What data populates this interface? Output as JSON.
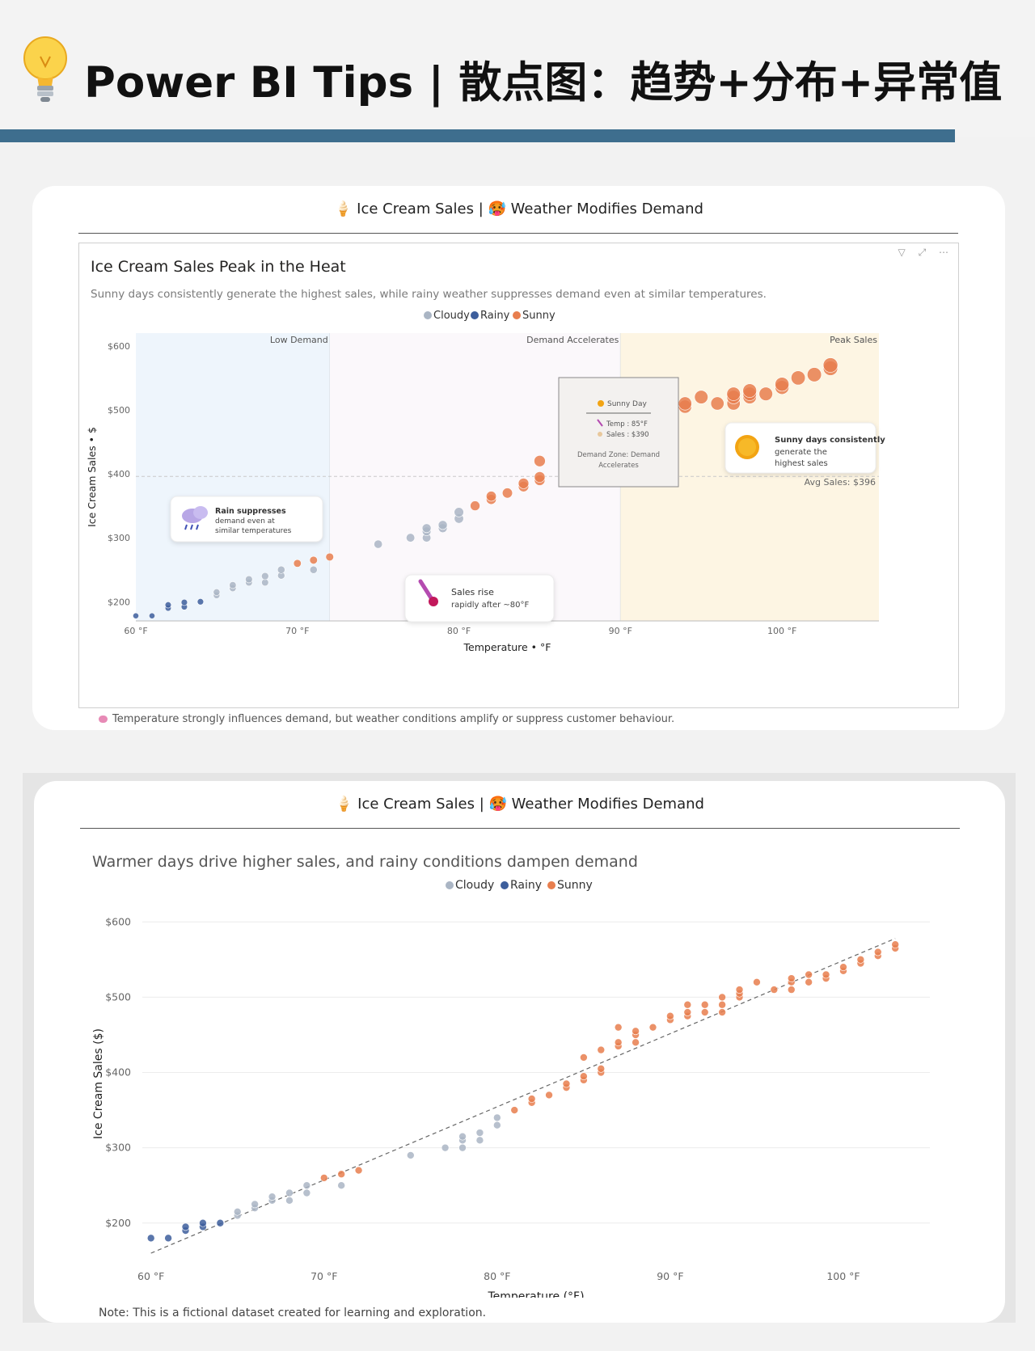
{
  "header": {
    "title": "Power BI Tips | 散点图：趋势+分布+异常值",
    "bulb_icon": "lightbulb-icon"
  },
  "card_title": "🍦 Ice Cream Sales | 🥵 Weather Modifies Demand",
  "colors": {
    "Cloudy": "#aab5c4",
    "Rainy": "#3d5e9c",
    "Sunny": "#e87e4e",
    "accent_bar": "#3e6e8e"
  },
  "visual1": {
    "title": "Ice Cream Sales Peak in the Heat",
    "subtitle": "Sunny days consistently generate the highest sales, while rainy weather suppresses demand even at similar temperatures.",
    "header_icons": "▽ ⤢ ⋯",
    "zone_labels": [
      "Low Demand",
      "Demand Accelerates",
      "Peak Sales"
    ],
    "avg_label": "Avg Sales: $396",
    "tooltip": {
      "title": "Sunny Day",
      "temp": "Temp : 85°F",
      "sales": "Sales : $390",
      "zone": "Demand Zone: Demand Accelerates"
    },
    "callout_rain": [
      "Rain suppresses",
      "demand even at",
      "similar temperatures"
    ],
    "callout_rise": [
      "Sales rise",
      "rapidly after ~80°F"
    ],
    "callout_sun": [
      "Sunny days consistently",
      "generate the",
      "highest sales"
    ],
    "footnote": "Temperature strongly influences demand, but weather conditions amplify or suppress customer behaviour."
  },
  "visual2": {
    "subtitle": "Warmer days drive higher sales, and rainy conditions dampen demand",
    "footnote": "Note: This is a fictional dataset created for learning and exploration."
  },
  "chart_data": [
    {
      "type": "scatter",
      "title": "Ice Cream Sales Peak in the Heat",
      "xlabel": "Temperature • °F",
      "ylabel": "Ice Cream Sales • $",
      "xlim": [
        60,
        106
      ],
      "ylim": [
        170,
        620
      ],
      "x_ticks": [
        "60 °F",
        "70 °F",
        "80 °F",
        "90 °F",
        "100 °F"
      ],
      "y_ticks": [
        "$200",
        "$300",
        "$400",
        "$500",
        "$600"
      ],
      "legend": [
        "Cloudy",
        "Rainy",
        "Sunny"
      ],
      "legend_position": "top-center",
      "avg_sales": 396,
      "zones": [
        {
          "label": "Low Demand",
          "x0": 60,
          "x1": 72
        },
        {
          "label": "Demand Accelerates",
          "x0": 72,
          "x1": 90
        },
        {
          "label": "Peak Sales",
          "x0": 90,
          "x1": 106
        }
      ],
      "series": [
        {
          "name": "Rainy",
          "points": [
            [
              60,
              178
            ],
            [
              61,
              178
            ],
            [
              62,
              190
            ],
            [
              62,
              195
            ],
            [
              63,
              192
            ],
            [
              63,
              199
            ],
            [
              64,
              200
            ]
          ]
        },
        {
          "name": "Cloudy",
          "points": [
            [
              65,
              210
            ],
            [
              65,
              215
            ],
            [
              66,
              221
            ],
            [
              66,
              226
            ],
            [
              67,
              230
            ],
            [
              67,
              235
            ],
            [
              68,
              230
            ],
            [
              68,
              240
            ],
            [
              69,
              241
            ],
            [
              69,
              250
            ],
            [
              71,
              250
            ],
            [
              75,
              290
            ],
            [
              77,
              300
            ],
            [
              78,
              300
            ],
            [
              78,
              310
            ],
            [
              78,
              315
            ],
            [
              79,
              315
            ],
            [
              79,
              320
            ],
            [
              80,
              330
            ],
            [
              80,
              340
            ]
          ]
        },
        {
          "name": "Sunny",
          "points": [
            [
              70,
              260
            ],
            [
              71,
              265
            ],
            [
              72,
              270
            ],
            [
              81,
              350
            ],
            [
              82,
              360
            ],
            [
              82,
              365
            ],
            [
              83,
              370
            ],
            [
              84,
              380
            ],
            [
              84,
              385
            ],
            [
              85,
              390
            ],
            [
              85,
              395
            ],
            [
              85,
              420
            ],
            [
              93,
              480
            ],
            [
              93,
              500
            ],
            [
              94,
              505
            ],
            [
              94,
              510
            ],
            [
              95,
              520
            ],
            [
              96,
              510
            ],
            [
              97,
              510
            ],
            [
              97,
              520
            ],
            [
              97,
              525
            ],
            [
              98,
              520
            ],
            [
              98,
              525
            ],
            [
              98,
              530
            ],
            [
              99,
              525
            ],
            [
              100,
              535
            ],
            [
              100,
              540
            ],
            [
              101,
              550
            ],
            [
              102,
              555
            ],
            [
              103,
              565
            ],
            [
              103,
              570
            ]
          ]
        }
      ]
    },
    {
      "type": "scatter",
      "title": "Warmer days drive higher sales, and rainy conditions dampen demand",
      "xlabel": "Temperature (°F)",
      "ylabel": "Ice Cream Sales ($)",
      "xlim": [
        59.5,
        105
      ],
      "ylim": [
        160,
        610
      ],
      "x_ticks": [
        "60 °F",
        "70 °F",
        "80 °F",
        "90 °F",
        "100 °F"
      ],
      "y_ticks": [
        "$200",
        "$300",
        "$400",
        "$500",
        "$600"
      ],
      "legend": [
        "Cloudy",
        "Rainy",
        "Sunny"
      ],
      "legend_position": "top-center",
      "trend_line": [
        [
          60,
          160
        ],
        [
          103,
          578
        ]
      ],
      "series": [
        {
          "name": "Rainy",
          "points": [
            [
              60,
              180
            ],
            [
              61,
              180
            ],
            [
              62,
              190
            ],
            [
              62,
              195
            ],
            [
              63,
              195
            ],
            [
              63,
              200
            ],
            [
              64,
              200
            ]
          ]
        },
        {
          "name": "Cloudy",
          "points": [
            [
              65,
              210
            ],
            [
              65,
              215
            ],
            [
              66,
              220
            ],
            [
              66,
              225
            ],
            [
              67,
              230
            ],
            [
              67,
              235
            ],
            [
              68,
              230
            ],
            [
              68,
              240
            ],
            [
              69,
              240
            ],
            [
              69,
              250
            ],
            [
              71,
              250
            ],
            [
              75,
              290
            ],
            [
              77,
              300
            ],
            [
              78,
              300
            ],
            [
              78,
              310
            ],
            [
              78,
              315
            ],
            [
              79,
              310
            ],
            [
              79,
              320
            ],
            [
              80,
              330
            ],
            [
              80,
              340
            ]
          ]
        },
        {
          "name": "Sunny",
          "points": [
            [
              70,
              260
            ],
            [
              71,
              265
            ],
            [
              72,
              270
            ],
            [
              81,
              350
            ],
            [
              82,
              360
            ],
            [
              82,
              365
            ],
            [
              83,
              370
            ],
            [
              84,
              380
            ],
            [
              84,
              385
            ],
            [
              85,
              390
            ],
            [
              85,
              395
            ],
            [
              85,
              420
            ],
            [
              86,
              400
            ],
            [
              86,
              405
            ],
            [
              86,
              430
            ],
            [
              87,
              435
            ],
            [
              87,
              440
            ],
            [
              87,
              460
            ],
            [
              88,
              440
            ],
            [
              88,
              450
            ],
            [
              88,
              455
            ],
            [
              89,
              460
            ],
            [
              90,
              470
            ],
            [
              90,
              475
            ],
            [
              91,
              475
            ],
            [
              91,
              480
            ],
            [
              91,
              490
            ],
            [
              92,
              480
            ],
            [
              92,
              490
            ],
            [
              93,
              480
            ],
            [
              93,
              490
            ],
            [
              93,
              500
            ],
            [
              94,
              500
            ],
            [
              94,
              505
            ],
            [
              94,
              510
            ],
            [
              95,
              520
            ],
            [
              96,
              510
            ],
            [
              97,
              510
            ],
            [
              97,
              520
            ],
            [
              97,
              525
            ],
            [
              98,
              520
            ],
            [
              98,
              530
            ],
            [
              99,
              525
            ],
            [
              99,
              530
            ],
            [
              100,
              535
            ],
            [
              100,
              540
            ],
            [
              101,
              545
            ],
            [
              101,
              550
            ],
            [
              102,
              555
            ],
            [
              102,
              560
            ],
            [
              103,
              565
            ],
            [
              103,
              570
            ]
          ]
        }
      ]
    }
  ]
}
